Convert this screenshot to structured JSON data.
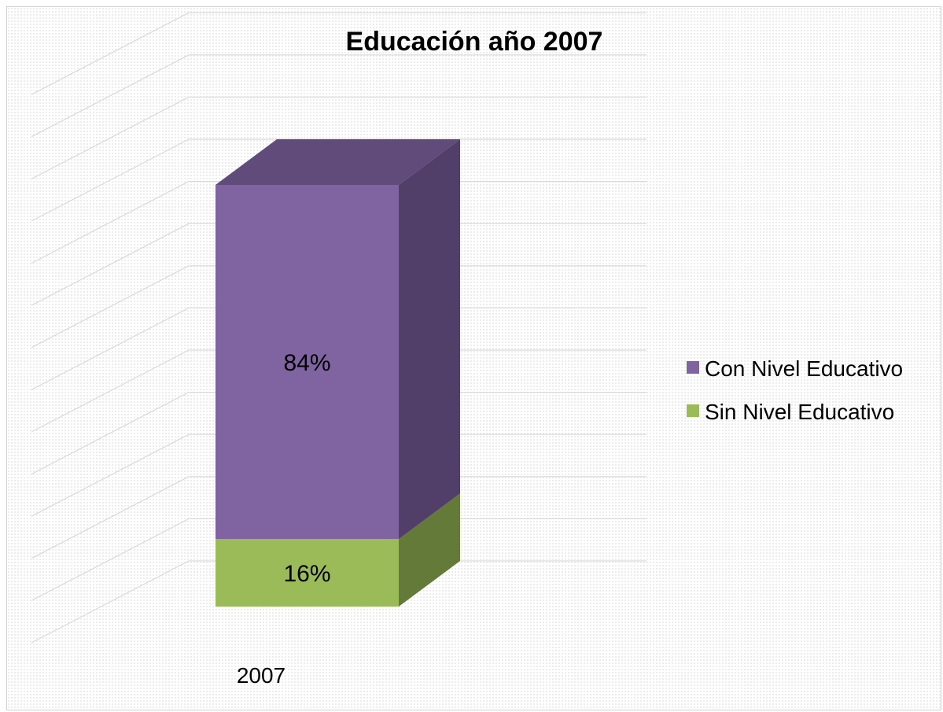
{
  "chart_data": {
    "type": "bar",
    "stacked": true,
    "three_d": true,
    "title": "Educación año 2007",
    "categories": [
      "2007"
    ],
    "series": [
      {
        "name": "Sin Nivel Educativo",
        "values": [
          16
        ],
        "label": "16%",
        "color": "#9bbb59",
        "side_color": "#647a38"
      },
      {
        "name": "Con Nivel Educativo",
        "values": [
          84
        ],
        "label": "84%",
        "color": "#8064a2",
        "side_color": "#523f69",
        "top_color": "#604b7a"
      }
    ],
    "ylim": [
      0,
      130
    ],
    "grid": true,
    "legend_position": "right"
  }
}
